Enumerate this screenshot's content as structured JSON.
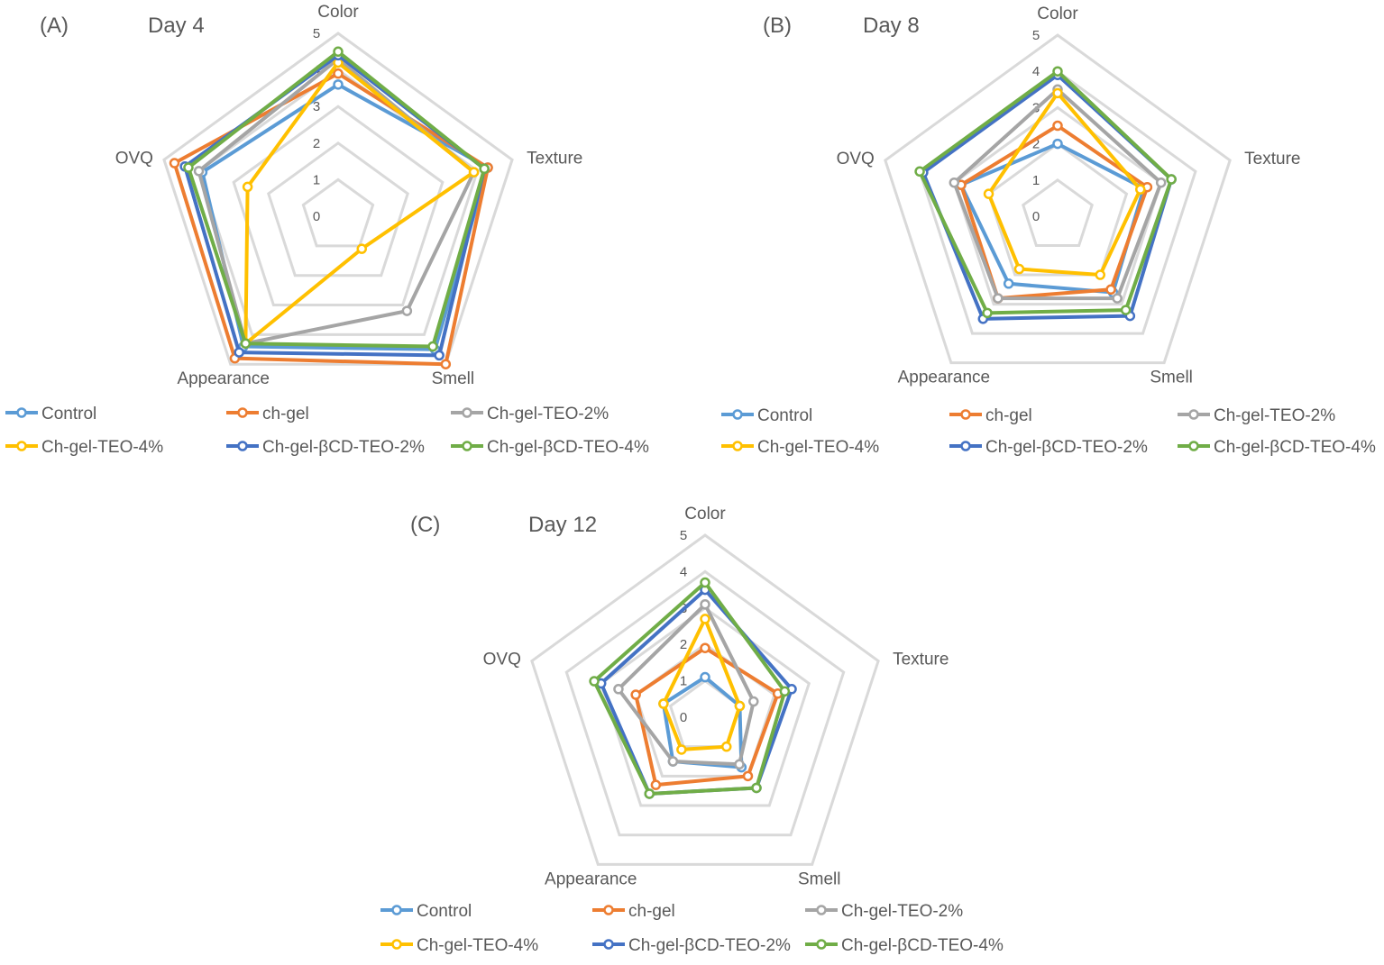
{
  "figure_title": "",
  "series_colors": {
    "Control": "#5B9BD5",
    "ch-gel": "#ED7D31",
    "Ch-gel-TEO-2%": "#A5A5A5",
    "Ch-gel-TEO-4%": "#FFC000",
    "Ch-gel-βCD-TEO-2%": "#4472C4",
    "Ch-gel-βCD-TEO-4%": "#70AD47"
  },
  "grid_color": "#D9D9D9",
  "chart_data": [
    {
      "type": "radar",
      "panel": "(A)",
      "title": "Day 4",
      "axes": [
        "Color",
        "Texture",
        "Smell",
        "Appearance",
        "OVQ"
      ],
      "ticks": [
        "0",
        "1",
        "2",
        "3",
        "4",
        "5"
      ],
      "rlim": [
        0,
        5
      ],
      "series": [
        {
          "name": "Control",
          "values": [
            3.6,
            4.3,
            4.5,
            4.4,
            3.9
          ]
        },
        {
          "name": "ch-gel",
          "values": [
            3.9,
            4.3,
            5.0,
            4.8,
            4.7
          ]
        },
        {
          "name": "Ch-gel-TEO-2%",
          "values": [
            4.3,
            3.9,
            3.2,
            4.3,
            4.0
          ]
        },
        {
          "name": "Ch-gel-TEO-4%",
          "values": [
            4.2,
            3.9,
            1.1,
            4.3,
            2.6
          ]
        },
        {
          "name": "Ch-gel-βCD-TEO-2%",
          "values": [
            4.4,
            4.2,
            4.7,
            4.6,
            4.4
          ]
        },
        {
          "name": "Ch-gel-βCD-TEO-4%",
          "values": [
            4.5,
            4.2,
            4.4,
            4.3,
            4.3
          ]
        }
      ]
    },
    {
      "type": "radar",
      "panel": "(B)",
      "title": "Day 8",
      "axes": [
        "Color",
        "Texture",
        "Smell",
        "Appearance",
        "OVQ"
      ],
      "ticks": [
        "0",
        "1",
        "2",
        "3",
        "4",
        "5"
      ],
      "rlim": [
        0,
        5
      ],
      "series": [
        {
          "name": "Control",
          "values": [
            2.0,
            2.5,
            2.6,
            2.3,
            2.8
          ]
        },
        {
          "name": "ch-gel",
          "values": [
            2.5,
            2.6,
            2.5,
            2.8,
            2.8
          ]
        },
        {
          "name": "Ch-gel-TEO-2%",
          "values": [
            3.5,
            3.0,
            2.8,
            2.8,
            3.0
          ]
        },
        {
          "name": "Ch-gel-TEO-4%",
          "values": [
            3.4,
            2.4,
            2.0,
            1.8,
            2.0
          ]
        },
        {
          "name": "Ch-gel-βCD-TEO-2%",
          "values": [
            3.9,
            3.3,
            3.4,
            3.5,
            3.9
          ]
        },
        {
          "name": "Ch-gel-βCD-TEO-4%",
          "values": [
            4.0,
            3.3,
            3.2,
            3.3,
            4.0
          ]
        }
      ]
    },
    {
      "type": "radar",
      "panel": "(C)",
      "title": "Day 12",
      "axes": [
        "Color",
        "Texture",
        "Smell",
        "Appearance",
        "OVQ"
      ],
      "ticks": [
        "0",
        "1",
        "2",
        "3",
        "4",
        "5"
      ],
      "rlim": [
        0,
        5
      ],
      "series": [
        {
          "name": "Control",
          "values": [
            1.1,
            1.0,
            1.7,
            1.5,
            1.2
          ]
        },
        {
          "name": "ch-gel",
          "values": [
            1.9,
            2.1,
            2.0,
            2.3,
            2.0
          ]
        },
        {
          "name": "Ch-gel-TEO-2%",
          "values": [
            3.1,
            1.4,
            1.6,
            1.5,
            2.5
          ]
        },
        {
          "name": "Ch-gel-TEO-4%",
          "values": [
            2.7,
            1.0,
            1.0,
            1.1,
            1.2
          ]
        },
        {
          "name": "Ch-gel-βCD-TEO-2%",
          "values": [
            3.5,
            2.5,
            2.4,
            2.6,
            3.0
          ]
        },
        {
          "name": "Ch-gel-βCD-TEO-4%",
          "values": [
            3.7,
            2.3,
            2.4,
            2.6,
            3.2
          ]
        }
      ]
    }
  ],
  "legend": {
    "row1": [
      "Control",
      "ch-gel",
      "Ch-gel-TEO-2%"
    ],
    "row2": [
      "Ch-gel-TEO-4%",
      "Ch-gel-βCD-TEO-2%",
      "Ch-gel-βCD-TEO-4%"
    ]
  }
}
